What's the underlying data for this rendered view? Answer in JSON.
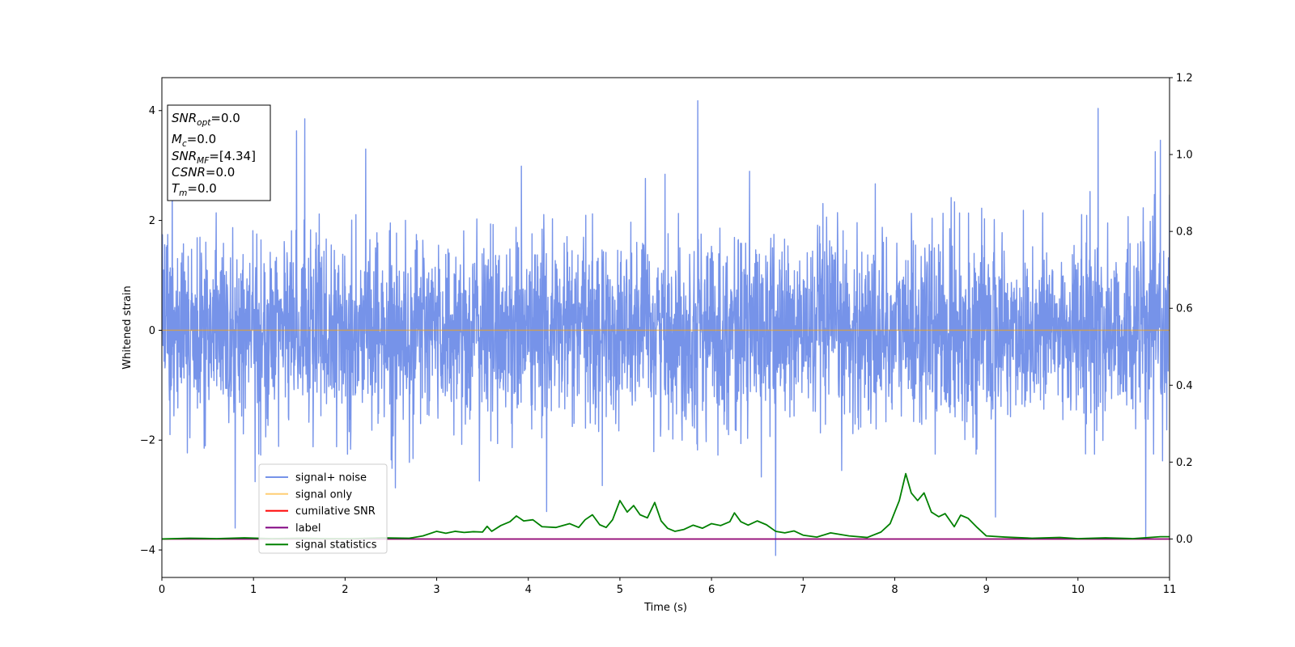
{
  "chart_data": {
    "type": "line",
    "xlabel": "Time (s)",
    "ylabel": "Whitened strain",
    "xlim": [
      0,
      11
    ],
    "ylim": [
      -4.5,
      4.6
    ],
    "y2lim": [
      -0.1,
      1.2
    ],
    "xticks": [
      0,
      1,
      2,
      3,
      4,
      5,
      6,
      7,
      8,
      9,
      10,
      11
    ],
    "yticks": [
      -4,
      -2,
      0,
      2,
      4
    ],
    "y2ticks": [
      0.0,
      0.2,
      0.4,
      0.6,
      0.8,
      1.0,
      1.2
    ],
    "y2tick_labels": [
      "0.0",
      "0.2",
      "0.4",
      "0.6",
      "0.8",
      "1.0",
      "1.2"
    ],
    "grid": false,
    "legend_position": "lower-left",
    "info_box": {
      "snr_opt": {
        "base": "SNR",
        "sub": "opt",
        "value": "=0.0"
      },
      "mc": {
        "base": "M",
        "sub": "c",
        "value": "=0.0"
      },
      "snr_mf": {
        "base": "SNR",
        "sub": "MF",
        "value": "=[4.34]"
      },
      "csnr": {
        "base": "CSNR",
        "value": "=0.0"
      },
      "tm": {
        "base": "T",
        "sub": "m",
        "value": "=0.0"
      }
    },
    "series": [
      {
        "name": "signal+ noise",
        "color": "#4169e1",
        "axis": "left",
        "kind": "noise",
        "std": 0.85,
        "notable_peaks": [
          {
            "x": 5.85,
            "y": 4.18
          },
          {
            "x": 10.22,
            "y": 4.04
          },
          {
            "x": 1.56,
            "y": 3.85
          },
          {
            "x": 1.47,
            "y": 3.63
          },
          {
            "x": 10.9,
            "y": 3.46
          },
          {
            "x": 6.7,
            "y": -4.1
          },
          {
            "x": 10.74,
            "y": -3.8
          },
          {
            "x": 0.8,
            "y": -3.6
          },
          {
            "x": 4.2,
            "y": -3.3
          },
          {
            "x": 9.1,
            "y": -3.4
          }
        ]
      },
      {
        "name": "signal only",
        "color": "#ffa500",
        "axis": "left",
        "kind": "constant",
        "value": 0.0
      },
      {
        "name": "cumilative SNR",
        "color": "#ff0000",
        "axis": "right",
        "kind": "constant",
        "value": 0.0
      },
      {
        "name": "label",
        "color": "#800080",
        "axis": "right",
        "kind": "constant",
        "value": 0.0
      },
      {
        "name": "signal statistics",
        "color": "#008000",
        "axis": "right",
        "kind": "line",
        "x": [
          0,
          0.3,
          0.6,
          0.9,
          1.2,
          1.5,
          1.8,
          2.1,
          2.4,
          2.7,
          2.85,
          3.0,
          3.1,
          3.2,
          3.3,
          3.4,
          3.5,
          3.55,
          3.6,
          3.7,
          3.8,
          3.87,
          3.95,
          4.05,
          4.15,
          4.3,
          4.45,
          4.55,
          4.62,
          4.7,
          4.78,
          4.85,
          4.92,
          5.0,
          5.08,
          5.15,
          5.22,
          5.3,
          5.38,
          5.45,
          5.52,
          5.6,
          5.7,
          5.8,
          5.9,
          6.0,
          6.1,
          6.2,
          6.25,
          6.32,
          6.4,
          6.5,
          6.6,
          6.7,
          6.8,
          6.9,
          7.0,
          7.15,
          7.3,
          7.5,
          7.7,
          7.85,
          7.95,
          8.05,
          8.12,
          8.18,
          8.25,
          8.32,
          8.4,
          8.48,
          8.55,
          8.65,
          8.72,
          8.8,
          8.9,
          9.0,
          9.2,
          9.5,
          9.8,
          10.0,
          10.3,
          10.6,
          10.9,
          11.0
        ],
        "y": [
          0.0,
          0.002,
          0.001,
          0.003,
          0.001,
          0.002,
          0.001,
          0.001,
          0.003,
          0.002,
          0.008,
          0.02,
          0.015,
          0.02,
          0.017,
          0.019,
          0.018,
          0.033,
          0.02,
          0.035,
          0.045,
          0.06,
          0.047,
          0.05,
          0.032,
          0.03,
          0.04,
          0.03,
          0.05,
          0.063,
          0.037,
          0.03,
          0.05,
          0.1,
          0.07,
          0.087,
          0.063,
          0.055,
          0.095,
          0.047,
          0.028,
          0.02,
          0.025,
          0.036,
          0.028,
          0.04,
          0.035,
          0.045,
          0.068,
          0.045,
          0.036,
          0.047,
          0.037,
          0.02,
          0.016,
          0.021,
          0.01,
          0.005,
          0.016,
          0.008,
          0.004,
          0.018,
          0.04,
          0.1,
          0.17,
          0.12,
          0.1,
          0.12,
          0.07,
          0.058,
          0.066,
          0.032,
          0.062,
          0.054,
          0.03,
          0.008,
          0.005,
          0.002,
          0.004,
          0.001,
          0.003,
          0.001,
          0.006,
          0.006
        ]
      }
    ]
  }
}
